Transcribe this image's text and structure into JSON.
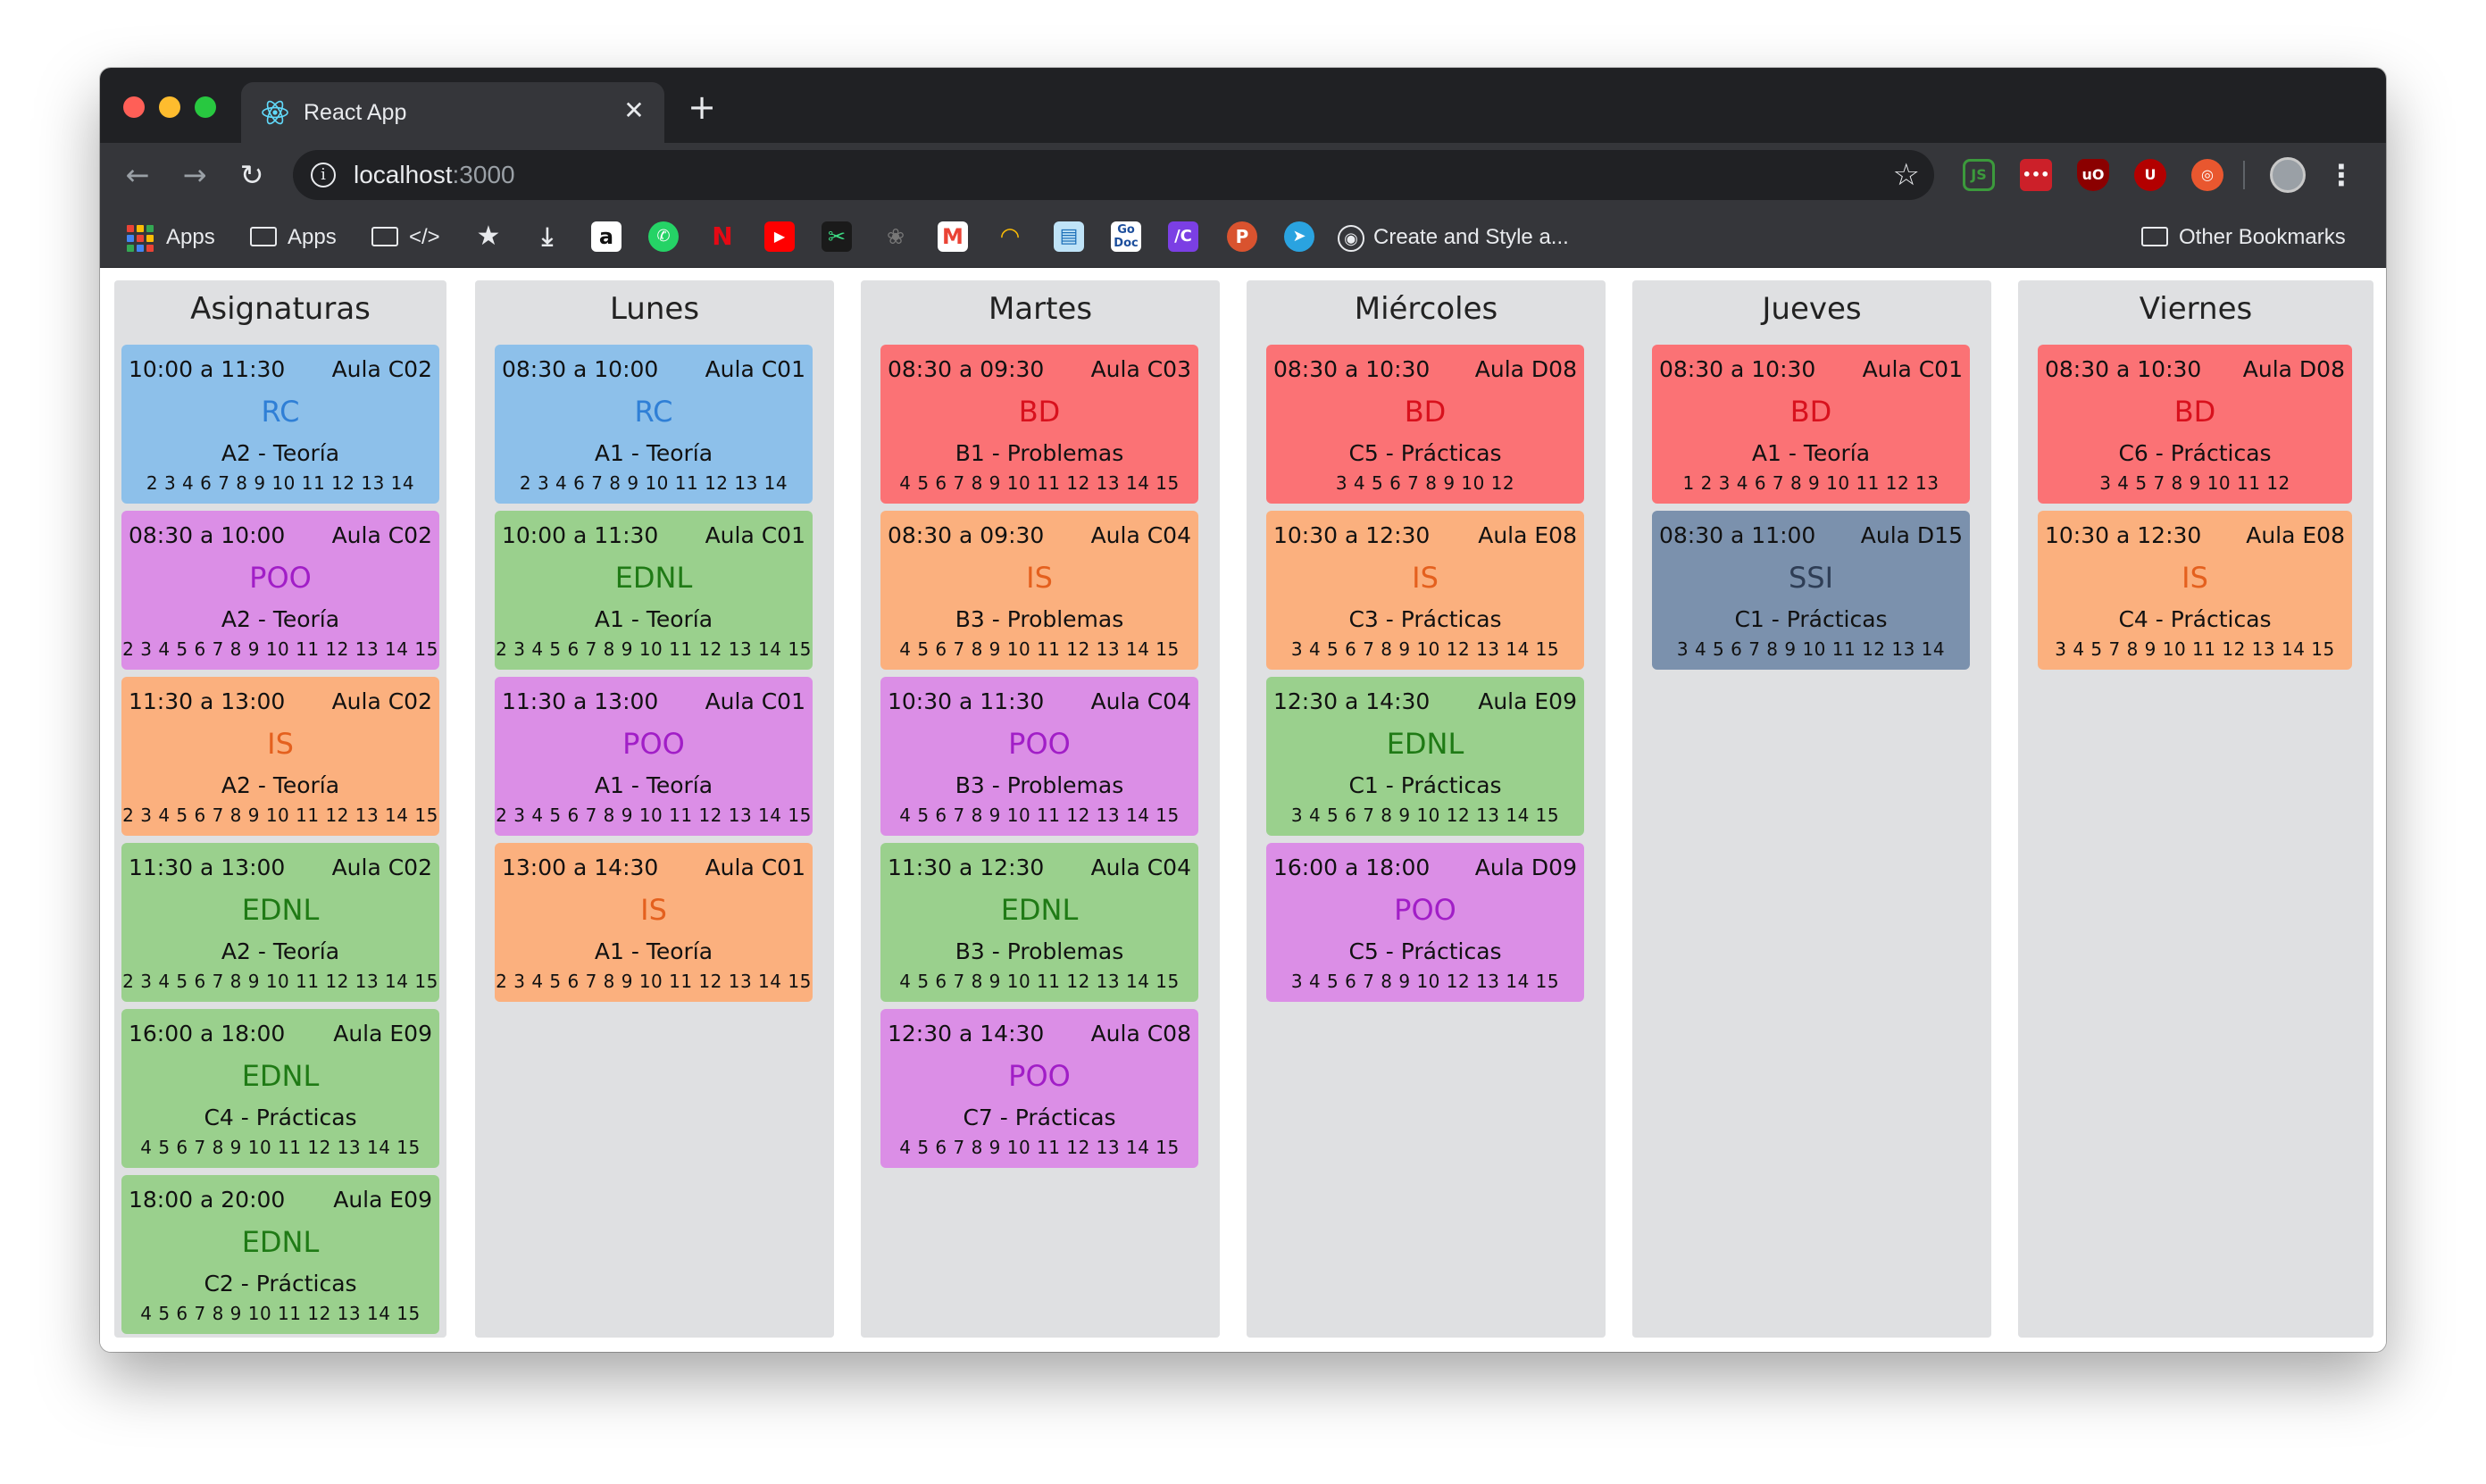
{
  "browser": {
    "tab_title": "React App",
    "url_host": "localhost",
    "url_port": ":3000",
    "bookmarks": {
      "apps1": "Apps",
      "apps2": "Apps",
      "code": "</>",
      "create": "Create and Style a...",
      "other": "Other Bookmarks"
    }
  },
  "colors": {
    "RC": {
      "bg": "#8dc0ea",
      "fg": "#2f7fd6"
    },
    "POO": {
      "bg": "#db8ee6",
      "fg": "#a11ec7"
    },
    "IS": {
      "bg": "#fbb07e",
      "fg": "#e4601e"
    },
    "EDNL": {
      "bg": "#9ad08d",
      "fg": "#1f7a15"
    },
    "BD": {
      "bg": "#fb7275",
      "fg": "#d8111d"
    },
    "SSI": {
      "bg": "#7b91ad",
      "fg": "#2e3d55"
    }
  },
  "columns": [
    {
      "title": "Asignaturas",
      "cards": [
        {
          "time": "10:00 a 11:30",
          "room": "Aula C02",
          "subject": "RC",
          "group": "A2 - Teoría",
          "weeks": "2 3 4 6 7 8 9 10 11 12 13 14"
        },
        {
          "time": "08:30 a 10:00",
          "room": "Aula C02",
          "subject": "POO",
          "group": "A2 - Teoría",
          "weeks": "2 3 4 5 6 7 8 9 10 11 12 13 14 15"
        },
        {
          "time": "11:30 a 13:00",
          "room": "Aula C02",
          "subject": "IS",
          "group": "A2 - Teoría",
          "weeks": "2 3 4 5 6 7 8 9 10 11 12 13 14 15"
        },
        {
          "time": "11:30 a 13:00",
          "room": "Aula C02",
          "subject": "EDNL",
          "group": "A2 - Teoría",
          "weeks": "2 3 4 5 6 7 8 9 10 11 12 13 14 15"
        },
        {
          "time": "16:00 a 18:00",
          "room": "Aula E09",
          "subject": "EDNL",
          "group": "C4 - Prácticas",
          "weeks": "4 5 6 7 8 9 10 11 12 13 14 15"
        },
        {
          "time": "18:00 a 20:00",
          "room": "Aula E09",
          "subject": "EDNL",
          "group": "C2 - Prácticas",
          "weeks": "4 5 6 7 8 9 10 11 12 13 14 15"
        }
      ]
    },
    {
      "title": "Lunes",
      "cards": [
        {
          "time": "08:30 a 10:00",
          "room": "Aula C01",
          "subject": "RC",
          "group": "A1 - Teoría",
          "weeks": "2 3 4 6 7 8 9 10 11 12 13 14"
        },
        {
          "time": "10:00 a 11:30",
          "room": "Aula C01",
          "subject": "EDNL",
          "group": "A1 - Teoría",
          "weeks": "2 3 4 5 6 7 8 9 10 11 12 13 14 15"
        },
        {
          "time": "11:30 a 13:00",
          "room": "Aula C01",
          "subject": "POO",
          "group": "A1 - Teoría",
          "weeks": "2 3 4 5 6 7 8 9 10 11 12 13 14 15"
        },
        {
          "time": "13:00 a 14:30",
          "room": "Aula C01",
          "subject": "IS",
          "group": "A1 - Teoría",
          "weeks": "2 3 4 5 6 7 8 9 10 11 12 13 14 15"
        }
      ]
    },
    {
      "title": "Martes",
      "cards": [
        {
          "time": "08:30 a 09:30",
          "room": "Aula C03",
          "subject": "BD",
          "group": "B1 - Problemas",
          "weeks": "4 5 6 7 8 9 10 11 12 13 14 15"
        },
        {
          "time": "08:30 a 09:30",
          "room": "Aula C04",
          "subject": "IS",
          "group": "B3 - Problemas",
          "weeks": "4 5 6 7 8 9 10 11 12 13 14 15"
        },
        {
          "time": "10:30 a 11:30",
          "room": "Aula C04",
          "subject": "POO",
          "group": "B3 - Problemas",
          "weeks": "4 5 6 7 8 9 10 11 12 13 14 15"
        },
        {
          "time": "11:30 a 12:30",
          "room": "Aula C04",
          "subject": "EDNL",
          "group": "B3 - Problemas",
          "weeks": "4 5 6 7 8 9 10 11 12 13 14 15"
        },
        {
          "time": "12:30 a 14:30",
          "room": "Aula C08",
          "subject": "POO",
          "group": "C7 - Prácticas",
          "weeks": "4 5 6 7 8 9 10 11 12 13 14 15"
        }
      ]
    },
    {
      "title": "Miércoles",
      "cards": [
        {
          "time": "08:30 a 10:30",
          "room": "Aula D08",
          "subject": "BD",
          "group": "C5 - Prácticas",
          "weeks": "3 4 5 6 7 8 9 10 12"
        },
        {
          "time": "10:30 a 12:30",
          "room": "Aula E08",
          "subject": "IS",
          "group": "C3 - Prácticas",
          "weeks": "3 4 5 6 7 8 9 10 12 13 14 15"
        },
        {
          "time": "12:30 a 14:30",
          "room": "Aula E09",
          "subject": "EDNL",
          "group": "C1 - Prácticas",
          "weeks": "3 4 5 6 7 8 9 10 12 13 14 15"
        },
        {
          "time": "16:00 a 18:00",
          "room": "Aula D09",
          "subject": "POO",
          "group": "C5 - Prácticas",
          "weeks": "3 4 5 6 7 8 9 10 12 13 14 15"
        }
      ]
    },
    {
      "title": "Jueves",
      "cards": [
        {
          "time": "08:30 a 10:30",
          "room": "Aula C01",
          "subject": "BD",
          "group": "A1 - Teoría",
          "weeks": "1 2 3 4 6 7 8 9 10 11 12 13"
        },
        {
          "time": "08:30 a 11:00",
          "room": "Aula D15",
          "subject": "SSI",
          "group": "C1 - Prácticas",
          "weeks": "3 4 5 6 7 8 9 10 11 12 13 14"
        }
      ]
    },
    {
      "title": "Viernes",
      "cards": [
        {
          "time": "08:30 a 10:30",
          "room": "Aula D08",
          "subject": "BD",
          "group": "C6 - Prácticas",
          "weeks": "3 4 5 7 8 9 10 11 12"
        },
        {
          "time": "10:30 a 12:30",
          "room": "Aula E08",
          "subject": "IS",
          "group": "C4 - Prácticas",
          "weeks": "3 4 5 7 8 9 10 11 12 13 14 15"
        }
      ]
    }
  ]
}
